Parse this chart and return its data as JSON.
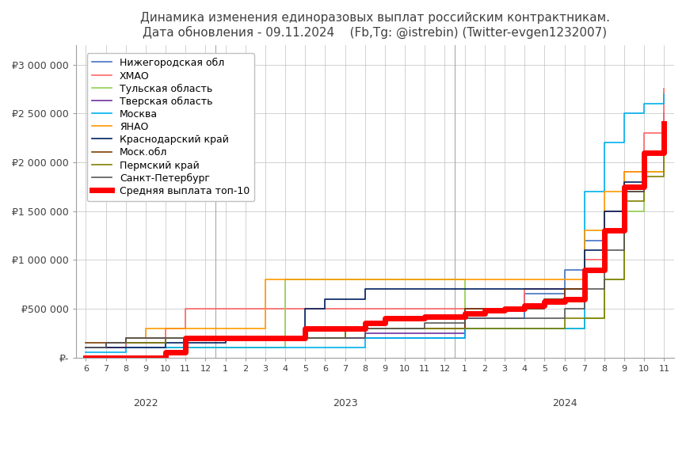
{
  "title_line1": "Динамика изменения единоразовых выплат российским контрактникам.",
  "title_line2": "Дата обновления - 09.11.2024    (Fb,Tg: @istrebin) (Twitter-evgen1232007)",
  "ylim": [
    0,
    3200000
  ],
  "yticks": [
    0,
    500000,
    1000000,
    1500000,
    2000000,
    2500000,
    3000000
  ],
  "ytick_labels": [
    "₽-",
    "₽500 000",
    "₽1 000 000",
    "₽1 500 000",
    "₽2 000 000",
    "₽2 500 000",
    "₽3 000 000"
  ],
  "x_labels_2022": [
    "6",
    "7",
    "8",
    "9",
    "10",
    "11",
    "12"
  ],
  "x_labels_2023": [
    "1",
    "2",
    "3",
    "4",
    "5",
    "6",
    "7",
    "8",
    "9",
    "10",
    "11",
    "12"
  ],
  "x_labels_2024": [
    "1",
    "2",
    "3",
    "4",
    "5",
    "6",
    "7",
    "8",
    "9",
    "10",
    "11"
  ],
  "series": [
    {
      "name": "Нижегородская обл",
      "color": "#4472C4",
      "linewidth": 1.2,
      "zorder": 3,
      "data": [
        [
          0,
          100000
        ],
        [
          1,
          100000
        ],
        [
          2,
          150000
        ],
        [
          3,
          150000
        ],
        [
          4,
          200000
        ],
        [
          5,
          200000
        ],
        [
          6,
          200000
        ],
        [
          7,
          200000
        ],
        [
          8,
          200000
        ],
        [
          9,
          200000
        ],
        [
          10,
          200000
        ],
        [
          11,
          200000
        ],
        [
          12,
          200000
        ],
        [
          13,
          200000
        ],
        [
          14,
          200000
        ],
        [
          15,
          200000
        ],
        [
          16,
          200000
        ],
        [
          17,
          200000
        ],
        [
          18,
          200000
        ],
        [
          19,
          400000
        ],
        [
          20,
          400000
        ],
        [
          21,
          400000
        ],
        [
          22,
          650000
        ],
        [
          23,
          650000
        ],
        [
          24,
          900000
        ],
        [
          25,
          1200000
        ],
        [
          26,
          1500000
        ],
        [
          27,
          1700000
        ],
        [
          28,
          2100000
        ],
        [
          29,
          2500000
        ]
      ]
    },
    {
      "name": "ХМАО",
      "color": "#FF6666",
      "linewidth": 1.2,
      "zorder": 3,
      "data": [
        [
          0,
          100000
        ],
        [
          1,
          100000
        ],
        [
          2,
          200000
        ],
        [
          3,
          200000
        ],
        [
          4,
          300000
        ],
        [
          5,
          500000
        ],
        [
          6,
          500000
        ],
        [
          7,
          500000
        ],
        [
          8,
          500000
        ],
        [
          9,
          500000
        ],
        [
          10,
          500000
        ],
        [
          11,
          500000
        ],
        [
          12,
          500000
        ],
        [
          13,
          500000
        ],
        [
          14,
          500000
        ],
        [
          15,
          500000
        ],
        [
          16,
          500000
        ],
        [
          17,
          500000
        ],
        [
          18,
          500000
        ],
        [
          19,
          500000
        ],
        [
          20,
          500000
        ],
        [
          21,
          500000
        ],
        [
          22,
          700000
        ],
        [
          23,
          700000
        ],
        [
          24,
          700000
        ],
        [
          25,
          1000000
        ],
        [
          26,
          1500000
        ],
        [
          27,
          1900000
        ],
        [
          28,
          2300000
        ],
        [
          29,
          2750000
        ]
      ]
    },
    {
      "name": "Тульская область",
      "color": "#92D050",
      "linewidth": 1.2,
      "zorder": 3,
      "data": [
        [
          4,
          100000
        ],
        [
          5,
          100000
        ],
        [
          6,
          100000
        ],
        [
          7,
          100000
        ],
        [
          8,
          100000
        ],
        [
          9,
          100000
        ],
        [
          10,
          800000
        ],
        [
          11,
          800000
        ],
        [
          12,
          800000
        ],
        [
          13,
          800000
        ],
        [
          14,
          800000
        ],
        [
          15,
          800000
        ],
        [
          16,
          800000
        ],
        [
          17,
          800000
        ],
        [
          18,
          800000
        ],
        [
          19,
          300000
        ],
        [
          20,
          300000
        ],
        [
          21,
          300000
        ],
        [
          22,
          300000
        ],
        [
          23,
          300000
        ],
        [
          24,
          300000
        ],
        [
          25,
          400000
        ],
        [
          26,
          800000
        ],
        [
          27,
          1500000
        ],
        [
          28,
          1900000
        ],
        [
          29,
          2200000
        ]
      ]
    },
    {
      "name": "Тверская область",
      "color": "#7030A0",
      "linewidth": 1.2,
      "zorder": 3,
      "data": [
        [
          0,
          100000
        ],
        [
          1,
          150000
        ],
        [
          2,
          150000
        ],
        [
          3,
          150000
        ],
        [
          4,
          200000
        ],
        [
          5,
          200000
        ],
        [
          6,
          200000
        ],
        [
          7,
          200000
        ],
        [
          8,
          200000
        ],
        [
          9,
          200000
        ],
        [
          10,
          200000
        ],
        [
          11,
          200000
        ],
        [
          12,
          200000
        ],
        [
          13,
          200000
        ],
        [
          14,
          250000
        ],
        [
          15,
          250000
        ],
        [
          16,
          250000
        ],
        [
          17,
          250000
        ],
        [
          18,
          250000
        ],
        [
          19,
          500000
        ],
        [
          20,
          500000
        ],
        [
          21,
          500000
        ],
        [
          22,
          500000
        ],
        [
          23,
          600000
        ],
        [
          24,
          700000
        ],
        [
          25,
          900000
        ],
        [
          26,
          1300000
        ],
        [
          27,
          1700000
        ],
        [
          28,
          2100000
        ],
        [
          29,
          2400000
        ]
      ]
    },
    {
      "name": "Москва",
      "color": "#00B0F0",
      "linewidth": 1.2,
      "zorder": 3,
      "data": [
        [
          0,
          50000
        ],
        [
          1,
          50000
        ],
        [
          2,
          100000
        ],
        [
          3,
          100000
        ],
        [
          4,
          100000
        ],
        [
          5,
          100000
        ],
        [
          6,
          100000
        ],
        [
          7,
          100000
        ],
        [
          8,
          100000
        ],
        [
          9,
          100000
        ],
        [
          10,
          100000
        ],
        [
          11,
          100000
        ],
        [
          12,
          100000
        ],
        [
          13,
          100000
        ],
        [
          14,
          200000
        ],
        [
          15,
          200000
        ],
        [
          16,
          200000
        ],
        [
          17,
          200000
        ],
        [
          18,
          200000
        ],
        [
          19,
          300000
        ],
        [
          20,
          300000
        ],
        [
          21,
          300000
        ],
        [
          22,
          300000
        ],
        [
          23,
          300000
        ],
        [
          24,
          300000
        ],
        [
          25,
          1700000
        ],
        [
          26,
          2200000
        ],
        [
          27,
          2500000
        ],
        [
          28,
          2600000
        ],
        [
          29,
          2700000
        ]
      ]
    },
    {
      "name": "ЯНАО",
      "color": "#FF9900",
      "linewidth": 1.2,
      "zorder": 3,
      "data": [
        [
          2,
          200000
        ],
        [
          3,
          300000
        ],
        [
          4,
          300000
        ],
        [
          5,
          300000
        ],
        [
          6,
          300000
        ],
        [
          7,
          300000
        ],
        [
          8,
          300000
        ],
        [
          9,
          800000
        ],
        [
          10,
          800000
        ],
        [
          11,
          800000
        ],
        [
          12,
          800000
        ],
        [
          13,
          800000
        ],
        [
          14,
          800000
        ],
        [
          15,
          800000
        ],
        [
          16,
          800000
        ],
        [
          17,
          800000
        ],
        [
          18,
          800000
        ],
        [
          19,
          800000
        ],
        [
          20,
          800000
        ],
        [
          21,
          800000
        ],
        [
          22,
          800000
        ],
        [
          23,
          800000
        ],
        [
          24,
          800000
        ],
        [
          25,
          1300000
        ],
        [
          26,
          1700000
        ],
        [
          27,
          1900000
        ],
        [
          28,
          1900000
        ],
        [
          29,
          2000000
        ]
      ]
    },
    {
      "name": "Краснодарский край",
      "color": "#002060",
      "linewidth": 1.2,
      "zorder": 3,
      "data": [
        [
          0,
          100000
        ],
        [
          1,
          100000
        ],
        [
          2,
          100000
        ],
        [
          3,
          100000
        ],
        [
          4,
          150000
        ],
        [
          5,
          150000
        ],
        [
          6,
          150000
        ],
        [
          7,
          200000
        ],
        [
          8,
          200000
        ],
        [
          9,
          200000
        ],
        [
          10,
          200000
        ],
        [
          11,
          500000
        ],
        [
          12,
          600000
        ],
        [
          13,
          600000
        ],
        [
          14,
          700000
        ],
        [
          15,
          700000
        ],
        [
          16,
          700000
        ],
        [
          17,
          700000
        ],
        [
          18,
          700000
        ],
        [
          19,
          700000
        ],
        [
          20,
          700000
        ],
        [
          21,
          700000
        ],
        [
          22,
          700000
        ],
        [
          23,
          700000
        ],
        [
          24,
          700000
        ],
        [
          25,
          1100000
        ],
        [
          26,
          1500000
        ],
        [
          27,
          1800000
        ],
        [
          28,
          2100000
        ],
        [
          29,
          2400000
        ]
      ]
    },
    {
      "name": "Моск.обл",
      "color": "#7B3F00",
      "linewidth": 1.2,
      "zorder": 3,
      "data": [
        [
          0,
          150000
        ],
        [
          1,
          150000
        ],
        [
          2,
          200000
        ],
        [
          3,
          200000
        ],
        [
          4,
          200000
        ],
        [
          5,
          200000
        ],
        [
          6,
          200000
        ],
        [
          7,
          200000
        ],
        [
          8,
          200000
        ],
        [
          9,
          200000
        ],
        [
          10,
          200000
        ],
        [
          11,
          200000
        ],
        [
          12,
          200000
        ],
        [
          13,
          300000
        ],
        [
          14,
          300000
        ],
        [
          15,
          300000
        ],
        [
          16,
          300000
        ],
        [
          17,
          300000
        ],
        [
          18,
          300000
        ],
        [
          19,
          500000
        ],
        [
          20,
          500000
        ],
        [
          21,
          500000
        ],
        [
          22,
          500000
        ],
        [
          23,
          600000
        ],
        [
          24,
          700000
        ],
        [
          25,
          900000
        ],
        [
          26,
          1300000
        ],
        [
          27,
          1700000
        ],
        [
          28,
          2100000
        ],
        [
          29,
          2350000
        ]
      ]
    },
    {
      "name": "Пермский край",
      "color": "#808000",
      "linewidth": 1.2,
      "zorder": 3,
      "data": [
        [
          2,
          150000
        ],
        [
          3,
          150000
        ],
        [
          4,
          200000
        ],
        [
          5,
          200000
        ],
        [
          6,
          200000
        ],
        [
          7,
          200000
        ],
        [
          8,
          200000
        ],
        [
          9,
          200000
        ],
        [
          10,
          200000
        ],
        [
          11,
          200000
        ],
        [
          12,
          200000
        ],
        [
          13,
          300000
        ],
        [
          14,
          300000
        ],
        [
          15,
          300000
        ],
        [
          16,
          300000
        ],
        [
          17,
          300000
        ],
        [
          18,
          300000
        ],
        [
          19,
          300000
        ],
        [
          20,
          300000
        ],
        [
          21,
          300000
        ],
        [
          22,
          300000
        ],
        [
          23,
          300000
        ],
        [
          24,
          400000
        ],
        [
          25,
          400000
        ],
        [
          26,
          800000
        ],
        [
          27,
          1600000
        ],
        [
          28,
          1850000
        ],
        [
          29,
          2200000
        ]
      ]
    },
    {
      "name": "Санкт-Петербург",
      "color": "#595959",
      "linewidth": 1.2,
      "zorder": 3,
      "data": [
        [
          0,
          100000
        ],
        [
          1,
          150000
        ],
        [
          2,
          200000
        ],
        [
          3,
          200000
        ],
        [
          4,
          200000
        ],
        [
          5,
          200000
        ],
        [
          6,
          200000
        ],
        [
          7,
          200000
        ],
        [
          8,
          200000
        ],
        [
          9,
          200000
        ],
        [
          10,
          200000
        ],
        [
          11,
          200000
        ],
        [
          12,
          200000
        ],
        [
          13,
          200000
        ],
        [
          14,
          300000
        ],
        [
          15,
          300000
        ],
        [
          16,
          300000
        ],
        [
          17,
          350000
        ],
        [
          18,
          350000
        ],
        [
          19,
          400000
        ],
        [
          20,
          400000
        ],
        [
          21,
          400000
        ],
        [
          22,
          400000
        ],
        [
          23,
          400000
        ],
        [
          24,
          500000
        ],
        [
          25,
          700000
        ],
        [
          26,
          1100000
        ],
        [
          27,
          1700000
        ],
        [
          28,
          2100000
        ],
        [
          29,
          2350000
        ]
      ]
    },
    {
      "name": "Средняя выплата топ-10",
      "color": "#FF0000",
      "linewidth": 5.0,
      "zorder": 10,
      "data": [
        [
          0,
          0
        ],
        [
          1,
          0
        ],
        [
          2,
          0
        ],
        [
          3,
          0
        ],
        [
          4,
          50000
        ],
        [
          5,
          200000
        ],
        [
          6,
          200000
        ],
        [
          7,
          200000
        ],
        [
          8,
          200000
        ],
        [
          9,
          200000
        ],
        [
          10,
          200000
        ],
        [
          11,
          300000
        ],
        [
          12,
          300000
        ],
        [
          13,
          300000
        ],
        [
          14,
          350000
        ],
        [
          15,
          400000
        ],
        [
          16,
          400000
        ],
        [
          17,
          420000
        ],
        [
          18,
          420000
        ],
        [
          19,
          450000
        ],
        [
          20,
          480000
        ],
        [
          21,
          500000
        ],
        [
          22,
          530000
        ],
        [
          23,
          570000
        ],
        [
          24,
          600000
        ],
        [
          25,
          900000
        ],
        [
          26,
          1300000
        ],
        [
          27,
          1750000
        ],
        [
          28,
          2100000
        ],
        [
          29,
          2400000
        ]
      ]
    }
  ],
  "background_color": "#FFFFFF",
  "grid_color": "#C0C0C0",
  "title_color": "#404040",
  "tick_color": "#404040",
  "legend_fontsize": 9,
  "title_fontsize": 11
}
